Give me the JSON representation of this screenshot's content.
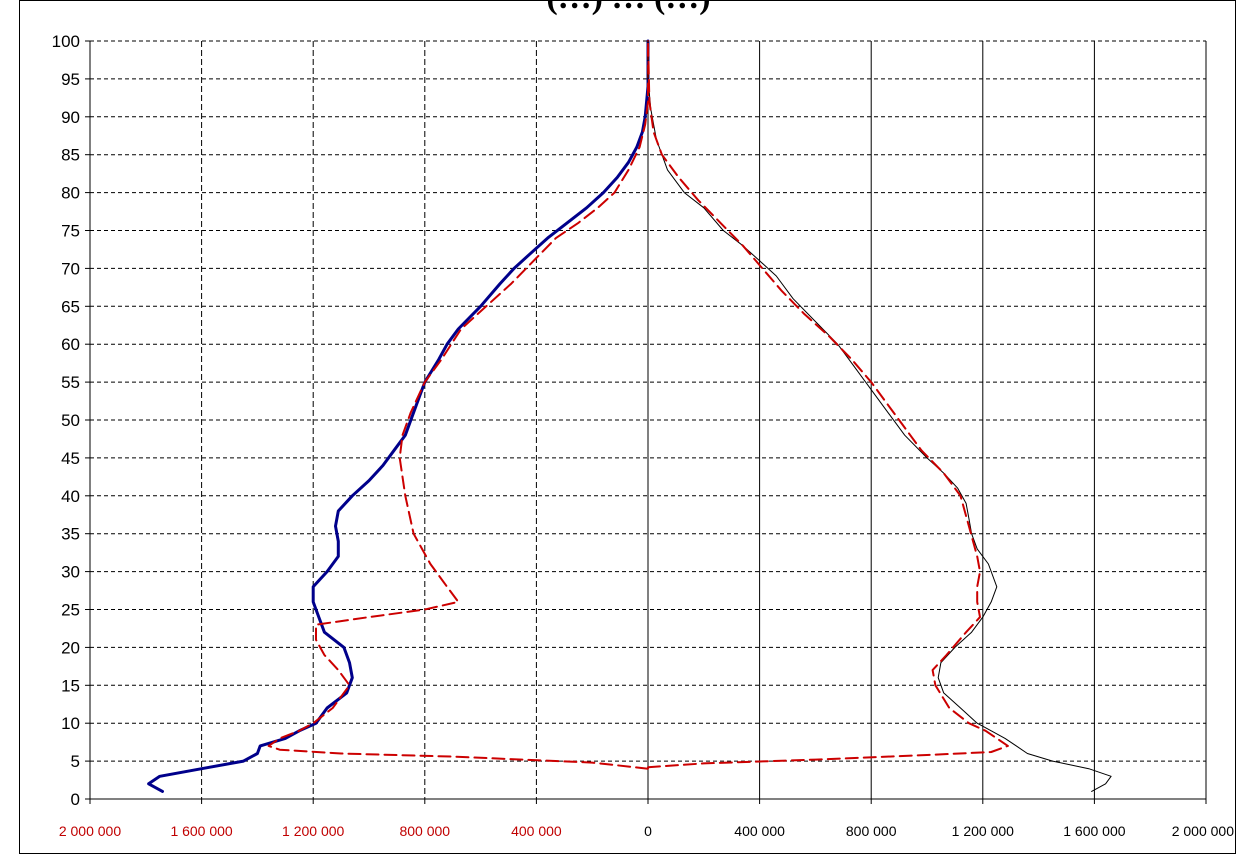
{
  "page": {
    "title_partial": "(…) … (…)"
  },
  "chart_data": {
    "type": "line",
    "title": "",
    "xlabel": "",
    "ylabel": "",
    "xlim": [
      -2000000,
      2000000
    ],
    "ylim": [
      0,
      100
    ],
    "x_ticks": [
      -2000000,
      -1600000,
      -1200000,
      -800000,
      -400000,
      0,
      400000,
      800000,
      1200000,
      1600000,
      2000000
    ],
    "x_tick_labels": [
      "2 000 000",
      "1 600 000",
      "1 200 000",
      "800 000",
      "400 000",
      "0",
      "400 000",
      "800 000",
      "1 200 000",
      "1 600 000",
      "2 000 000"
    ],
    "x_tick_colors": [
      "#c00000",
      "#c00000",
      "#c00000",
      "#c00000",
      "#c00000",
      "#000000",
      "#000000",
      "#000000",
      "#000000",
      "#000000",
      "#000000"
    ],
    "y_ticks": [
      0,
      5,
      10,
      15,
      20,
      25,
      30,
      35,
      40,
      45,
      50,
      55,
      60,
      65,
      70,
      75,
      80,
      85,
      90,
      95,
      100
    ],
    "y_tick_labels": [
      "0",
      "5",
      "10",
      "15",
      "20",
      "25",
      "30",
      "35",
      "40",
      "45",
      "50",
      "55",
      "60",
      "65",
      "70",
      "75",
      "80",
      "85",
      "90",
      "95",
      "100"
    ],
    "grid": "dashed",
    "legend": "none",
    "series": [
      {
        "color": "#00008b",
        "style": "solid",
        "width": 3,
        "points": [
          [
            -1740000,
            1
          ],
          [
            -1790000,
            2
          ],
          [
            -1750000,
            3
          ],
          [
            -1600000,
            4
          ],
          [
            -1450000,
            5
          ],
          [
            -1400000,
            6
          ],
          [
            -1390000,
            7
          ],
          [
            -1300000,
            8
          ],
          [
            -1250000,
            9
          ],
          [
            -1190000,
            10
          ],
          [
            -1150000,
            12
          ],
          [
            -1080000,
            14
          ],
          [
            -1060000,
            16
          ],
          [
            -1070000,
            18
          ],
          [
            -1090000,
            20
          ],
          [
            -1160000,
            22
          ],
          [
            -1180000,
            24
          ],
          [
            -1200000,
            26
          ],
          [
            -1200000,
            28
          ],
          [
            -1150000,
            30
          ],
          [
            -1110000,
            32
          ],
          [
            -1110000,
            34
          ],
          [
            -1120000,
            36
          ],
          [
            -1110000,
            38
          ],
          [
            -1060000,
            40
          ],
          [
            -1000000,
            42
          ],
          [
            -950000,
            44
          ],
          [
            -910000,
            46
          ],
          [
            -870000,
            48
          ],
          [
            -830000,
            52
          ],
          [
            -800000,
            55
          ],
          [
            -750000,
            58
          ],
          [
            -720000,
            60
          ],
          [
            -680000,
            62
          ],
          [
            -600000,
            65
          ],
          [
            -530000,
            68
          ],
          [
            -480000,
            70
          ],
          [
            -420000,
            72
          ],
          [
            -360000,
            74
          ],
          [
            -290000,
            76
          ],
          [
            -220000,
            78
          ],
          [
            -160000,
            80
          ],
          [
            -110000,
            82
          ],
          [
            -70000,
            84
          ],
          [
            -40000,
            86
          ],
          [
            -20000,
            88
          ],
          [
            -10000,
            90
          ],
          [
            0,
            94
          ],
          [
            0,
            100
          ]
        ]
      },
      {
        "color": "#cc0000",
        "style": "dashed",
        "width": 2,
        "points": [
          [
            0,
            4
          ],
          [
            -200000,
            4.8
          ],
          [
            -700000,
            5.6
          ],
          [
            -1100000,
            6
          ],
          [
            -1320000,
            6.5
          ],
          [
            -1360000,
            7
          ],
          [
            -1320000,
            8
          ],
          [
            -1250000,
            9
          ],
          [
            -1200000,
            10
          ],
          [
            -1130000,
            12
          ],
          [
            -1070000,
            15
          ],
          [
            -1110000,
            17
          ],
          [
            -1160000,
            19
          ],
          [
            -1190000,
            21
          ],
          [
            -1190000,
            23
          ],
          [
            -1000000,
            24
          ],
          [
            -800000,
            25
          ],
          [
            -680000,
            26
          ],
          [
            -720000,
            28
          ],
          [
            -780000,
            31
          ],
          [
            -840000,
            35
          ],
          [
            -870000,
            40
          ],
          [
            -890000,
            45
          ],
          [
            -880000,
            48
          ],
          [
            -850000,
            51
          ],
          [
            -800000,
            55
          ],
          [
            -740000,
            58
          ],
          [
            -670000,
            62
          ],
          [
            -580000,
            65
          ],
          [
            -490000,
            68
          ],
          [
            -410000,
            71
          ],
          [
            -330000,
            74
          ],
          [
            -250000,
            76
          ],
          [
            -180000,
            78
          ],
          [
            -120000,
            80
          ],
          [
            -70000,
            83
          ],
          [
            -30000,
            86
          ],
          [
            -10000,
            89
          ],
          [
            0,
            92
          ],
          [
            0,
            100
          ]
        ]
      },
      {
        "color": "#000000",
        "style": "solid",
        "width": 1,
        "points": [
          [
            1590000,
            1
          ],
          [
            1640000,
            2
          ],
          [
            1660000,
            3
          ],
          [
            1580000,
            4
          ],
          [
            1450000,
            5
          ],
          [
            1360000,
            6
          ],
          [
            1320000,
            7
          ],
          [
            1280000,
            8
          ],
          [
            1230000,
            9
          ],
          [
            1180000,
            10
          ],
          [
            1120000,
            12
          ],
          [
            1060000,
            14
          ],
          [
            1040000,
            16
          ],
          [
            1050000,
            18
          ],
          [
            1100000,
            20
          ],
          [
            1160000,
            22
          ],
          [
            1200000,
            24
          ],
          [
            1230000,
            26
          ],
          [
            1250000,
            28
          ],
          [
            1220000,
            31
          ],
          [
            1180000,
            33
          ],
          [
            1160000,
            35
          ],
          [
            1150000,
            37
          ],
          [
            1140000,
            39
          ],
          [
            1110000,
            41
          ],
          [
            1060000,
            43
          ],
          [
            1000000,
            45
          ],
          [
            920000,
            48
          ],
          [
            860000,
            51
          ],
          [
            800000,
            54
          ],
          [
            740000,
            57
          ],
          [
            680000,
            60
          ],
          [
            600000,
            63
          ],
          [
            520000,
            66
          ],
          [
            460000,
            69
          ],
          [
            400000,
            71
          ],
          [
            340000,
            73
          ],
          [
            270000,
            75
          ],
          [
            200000,
            78
          ],
          [
            130000,
            80
          ],
          [
            70000,
            83
          ],
          [
            30000,
            87
          ],
          [
            10000,
            91
          ],
          [
            0,
            95
          ],
          [
            0,
            100
          ]
        ]
      },
      {
        "color": "#cc0000",
        "style": "dashed",
        "width": 2,
        "points": [
          [
            0,
            4.2
          ],
          [
            200000,
            4.7
          ],
          [
            600000,
            5.2
          ],
          [
            1000000,
            5.8
          ],
          [
            1230000,
            6.2
          ],
          [
            1290000,
            7
          ],
          [
            1250000,
            8
          ],
          [
            1210000,
            9
          ],
          [
            1150000,
            10
          ],
          [
            1080000,
            12
          ],
          [
            1030000,
            15
          ],
          [
            1020000,
            17
          ],
          [
            1070000,
            19
          ],
          [
            1140000,
            22
          ],
          [
            1190000,
            24
          ],
          [
            1180000,
            26
          ],
          [
            1180000,
            28
          ],
          [
            1190000,
            30
          ],
          [
            1180000,
            32
          ],
          [
            1150000,
            36
          ],
          [
            1120000,
            40
          ],
          [
            1060000,
            43
          ],
          [
            980000,
            46
          ],
          [
            900000,
            50
          ],
          [
            800000,
            55
          ],
          [
            730000,
            58
          ],
          [
            650000,
            61
          ],
          [
            560000,
            64
          ],
          [
            480000,
            67
          ],
          [
            410000,
            70
          ],
          [
            340000,
            73
          ],
          [
            260000,
            76
          ],
          [
            180000,
            79
          ],
          [
            110000,
            82
          ],
          [
            50000,
            85
          ],
          [
            20000,
            88
          ],
          [
            5000,
            92
          ],
          [
            0,
            100
          ]
        ]
      }
    ]
  }
}
